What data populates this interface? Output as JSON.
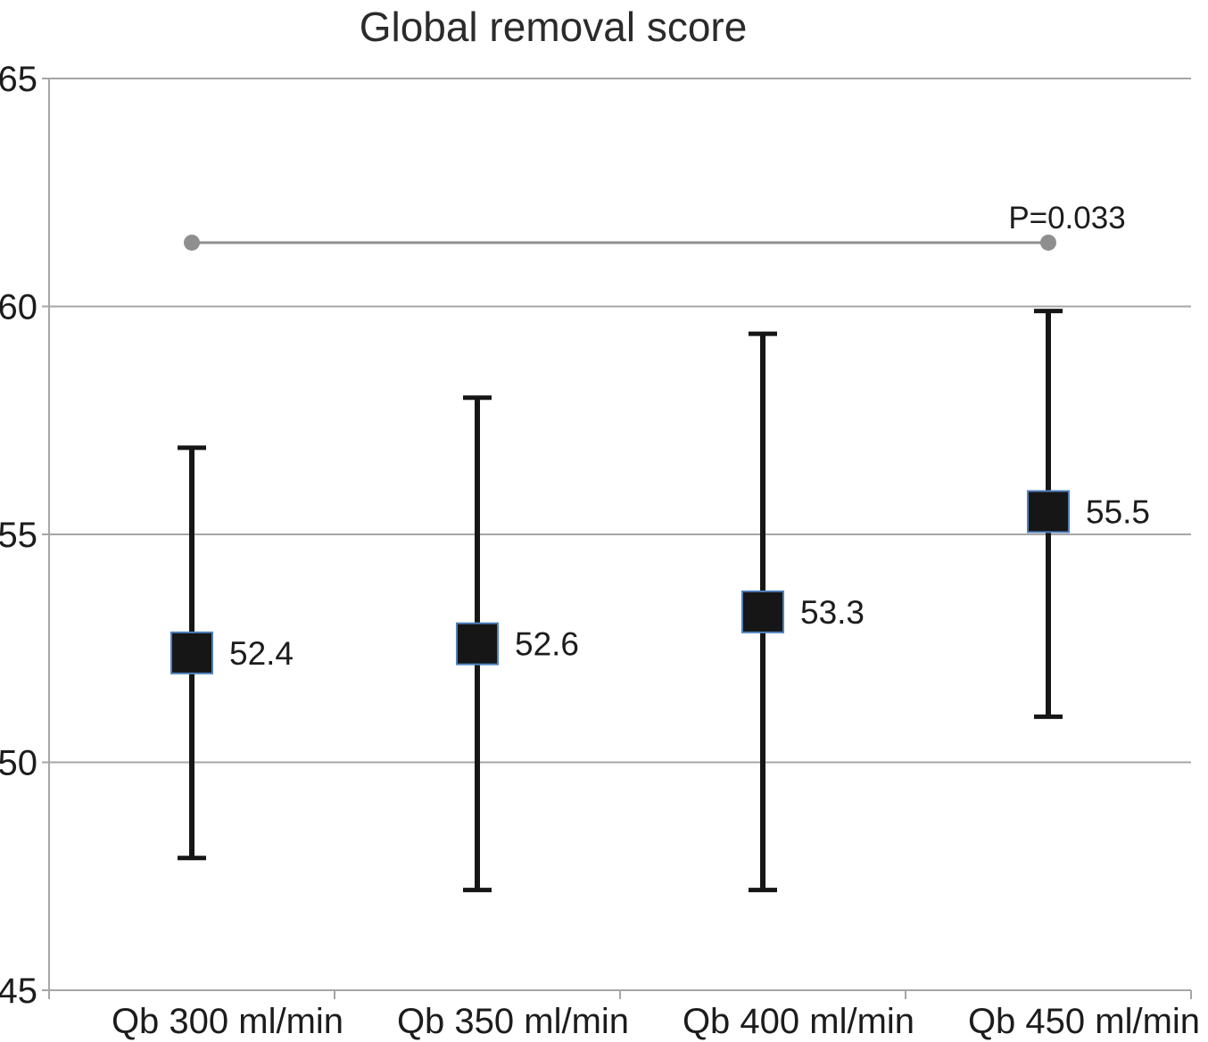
{
  "chart_data": {
    "type": "scatter",
    "title": "Global removal score",
    "categories": [
      "Qb 300 ml/min",
      "Qb 350 ml/min",
      "Qb 400 ml/min",
      "Qb 450 ml/min"
    ],
    "means": [
      52.4,
      52.6,
      53.3,
      55.5
    ],
    "error_low": [
      47.9,
      47.2,
      47.2,
      51.0
    ],
    "error_high": [
      56.9,
      58.0,
      59.4,
      59.9
    ],
    "value_labels": [
      "52.4",
      "52.6",
      "53.3",
      "55.5"
    ],
    "ylim": [
      45,
      65
    ],
    "yticks": [
      65,
      60,
      55,
      50,
      45
    ],
    "xlabel": "",
    "ylabel": "",
    "grid": true,
    "legend": "none",
    "significance": {
      "label": "P=0.033",
      "y": 61.4,
      "from": 0,
      "to": 3
    },
    "colors": {
      "marker_fill": "#161616",
      "marker_stroke": "#4f81bd",
      "error_bar": "#161616",
      "gridline": "#a6a6a6",
      "axis": "#a6a6a6",
      "significance": "#8f8f8f",
      "text": "#1c1c1c",
      "title": "#2b2b2b"
    }
  }
}
